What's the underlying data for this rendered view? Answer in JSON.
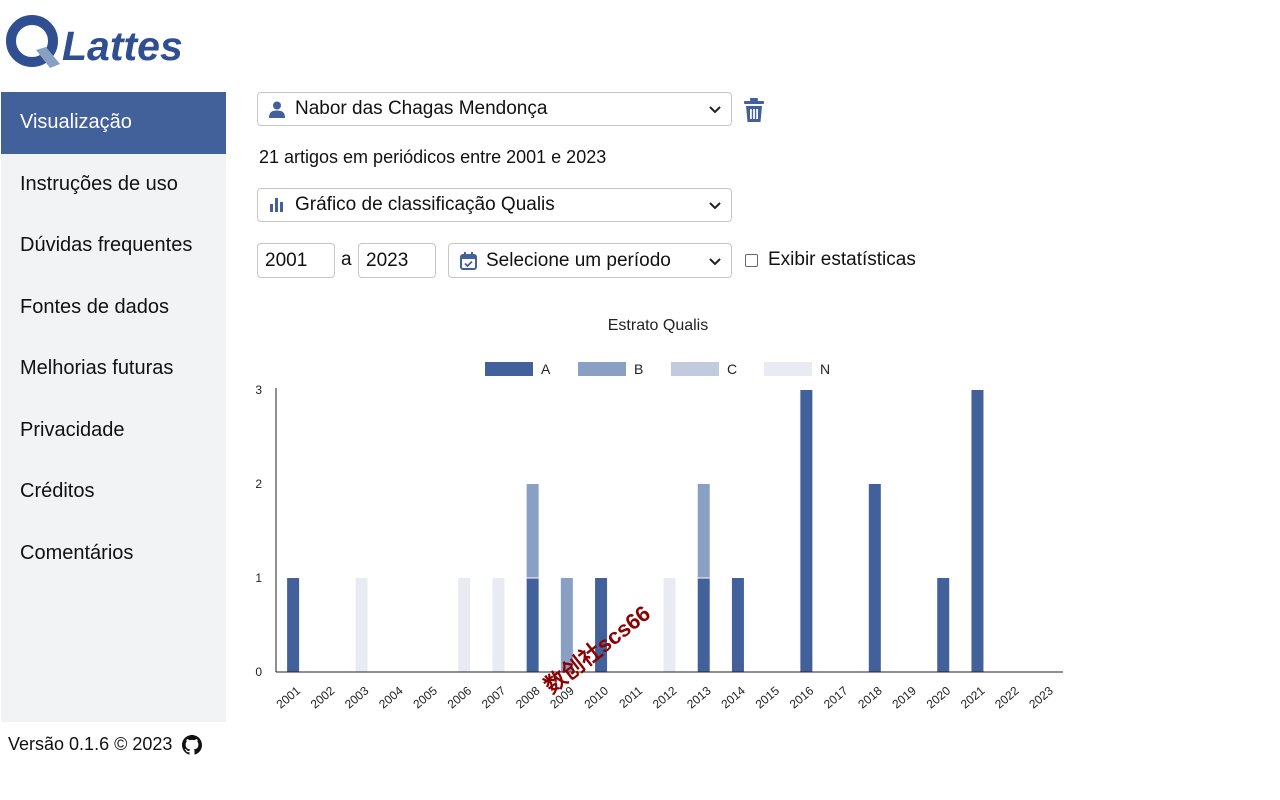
{
  "brand": {
    "logo_text": "Lattes",
    "accent": "#42609a",
    "logo_color": "#2f4f91"
  },
  "sidebar": {
    "items": [
      {
        "label": "Visualização",
        "active": true
      },
      {
        "label": "Instruções de uso"
      },
      {
        "label": "Dúvidas frequentes"
      },
      {
        "label": "Fontes de dados"
      },
      {
        "label": "Melhorias futuras"
      },
      {
        "label": "Privacidade"
      },
      {
        "label": "Créditos"
      },
      {
        "label": "Comentários"
      }
    ],
    "footer": {
      "text": "Versão 0.1.6 © 2023",
      "icon": "github-icon"
    }
  },
  "controls": {
    "researcher": {
      "value": "Nabor das Chagas Mendonça",
      "icon": "user-icon"
    },
    "delete_icon": "trash-icon",
    "summary": "21 artigos em periódicos entre 2001 e 2023",
    "chart_type": {
      "value": "Gráfico de classificação Qualis",
      "icon": "bar-chart-icon"
    },
    "year_from": "2001",
    "year_sep": "a",
    "year_to": "2023",
    "period": {
      "value": "Selecione um período",
      "icon": "calendar-check-icon"
    },
    "stats_label": "Exibir estatísticas",
    "stats_checked": false
  },
  "watermark": "数创社scs66",
  "chart_data": {
    "type": "bar",
    "stacked": true,
    "title": "Estrato Qualis",
    "xlabel": "",
    "ylabel": "",
    "ylim": [
      0,
      3
    ],
    "yticks": [
      "0",
      "1",
      "2",
      "3"
    ],
    "legend": "top",
    "grid": false,
    "categories": [
      "2001",
      "2002",
      "2003",
      "2004",
      "2005",
      "2006",
      "2007",
      "2008",
      "2009",
      "2010",
      "2011",
      "2012",
      "2013",
      "2014",
      "2015",
      "2016",
      "2017",
      "2018",
      "2019",
      "2020",
      "2021",
      "2022",
      "2023"
    ],
    "series": [
      {
        "name": "A",
        "color": "#42609a",
        "values": [
          1,
          0,
          0,
          0,
          0,
          0,
          0,
          1,
          0,
          1,
          0,
          0,
          1,
          1,
          0,
          3,
          0,
          2,
          0,
          1,
          3,
          0,
          0
        ]
      },
      {
        "name": "B",
        "color": "#8a9fc4",
        "values": [
          0,
          0,
          0,
          0,
          0,
          0,
          0,
          1,
          1,
          0,
          0,
          0,
          1,
          0,
          0,
          0,
          0,
          0,
          0,
          0,
          0,
          0,
          0
        ]
      },
      {
        "name": "C",
        "color": "#c2cbde",
        "values": [
          0,
          0,
          0,
          0,
          0,
          0,
          0,
          0,
          0,
          0,
          0,
          0,
          0,
          0,
          0,
          0,
          0,
          0,
          0,
          0,
          0,
          0,
          0
        ]
      },
      {
        "name": "N",
        "color": "#e8ebf2",
        "values": [
          0,
          0,
          1,
          0,
          0,
          1,
          1,
          0,
          0,
          0,
          0,
          1,
          0,
          0,
          0,
          0,
          0,
          0,
          0,
          0,
          0,
          0,
          0
        ]
      }
    ]
  }
}
